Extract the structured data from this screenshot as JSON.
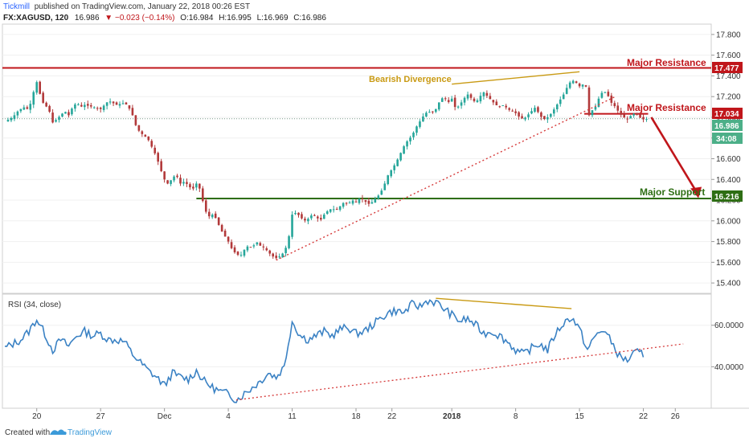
{
  "header": {
    "publisher": "Tickmill",
    "published_text": "published on TradingView.com, January 22, 2018 00:26 EST",
    "symbol": "FX:XAGUSD, 120",
    "last": "16.986",
    "change": "▼ −0.023 (−0.14%)",
    "open": "O:16.984",
    "high": "H:16.995",
    "low": "L:16.969",
    "close": "C:16.986"
  },
  "footer": {
    "created_with": "Created with",
    "brand": "TradingView"
  },
  "colors": {
    "bull": "#26a69a",
    "bear": "#b2393a",
    "resistance": "#c0161b",
    "support": "#2e6e14",
    "divergence": "#c99a13",
    "rsi_line": "#3b82c4",
    "trend_dotted": "#d63a3a"
  },
  "annotations": {
    "major_resistance_1": "Major Resistance",
    "major_resistance_2": "Major Resistance",
    "major_support": "Major Support",
    "bearish_divergence": "Bearish Divergence"
  },
  "price_tags": {
    "resistance_top": "17.477",
    "resistance_mid": "17.034",
    "last_price": "16.986",
    "countdown": "34:08",
    "support": "16.216"
  },
  "chart_data": [
    {
      "type": "candlestick",
      "series_name": "FX:XAGUSD, 120",
      "y_ticks": [
        "17.800",
        "17.600",
        "17.400",
        "17.200",
        "17.000",
        "16.800",
        "16.600",
        "16.400",
        "16.200",
        "16.000",
        "15.800",
        "15.600",
        "15.400"
      ],
      "ylim": [
        15.3,
        17.9
      ],
      "x_ticks": [
        "20",
        "27",
        "Dec",
        "4",
        "11",
        "18",
        "22",
        "2018",
        "8",
        "15",
        "22",
        "26"
      ],
      "levels": [
        {
          "name": "Major Resistance",
          "value": 17.477
        },
        {
          "name": "Major Resistance",
          "value": 17.034
        },
        {
          "name": "Major Support",
          "value": 16.216
        }
      ],
      "last_price": 16.986,
      "path": [
        [
          0,
          16.96
        ],
        [
          0.5,
          16.98
        ],
        [
          1,
          17.0
        ],
        [
          1.5,
          17.05
        ],
        [
          2,
          17.08
        ],
        [
          2.5,
          17.1
        ],
        [
          3,
          17.07
        ],
        [
          3.5,
          17.22
        ],
        [
          4,
          17.34
        ],
        [
          4.3,
          17.26
        ],
        [
          4.6,
          17.16
        ],
        [
          5,
          17.12
        ],
        [
          5.5,
          17.08
        ],
        [
          6,
          16.95
        ],
        [
          6.5,
          16.98
        ],
        [
          7,
          17.02
        ],
        [
          7.5,
          17.06
        ],
        [
          8,
          17.02
        ],
        [
          8.5,
          17.1
        ],
        [
          9,
          17.14
        ],
        [
          9.5,
          17.1
        ],
        [
          10,
          17.12
        ],
        [
          11,
          17.1
        ],
        [
          12,
          17.08
        ],
        [
          13,
          17.16
        ],
        [
          14,
          17.12
        ],
        [
          15,
          17.14
        ],
        [
          15.5,
          17.1
        ],
        [
          16,
          17.02
        ],
        [
          16.5,
          16.9
        ],
        [
          17,
          16.85
        ],
        [
          17.5,
          16.82
        ],
        [
          18,
          16.78
        ],
        [
          18.5,
          16.7
        ],
        [
          19,
          16.62
        ],
        [
          19.5,
          16.5
        ],
        [
          20,
          16.4
        ],
        [
          20.5,
          16.35
        ],
        [
          21,
          16.42
        ],
        [
          21.5,
          16.44
        ],
        [
          22,
          16.36
        ],
        [
          22.5,
          16.38
        ],
        [
          23,
          16.34
        ],
        [
          23.5,
          16.3
        ],
        [
          24,
          16.36
        ],
        [
          24.5,
          16.3
        ],
        [
          25,
          16.12
        ],
        [
          25.5,
          16.04
        ],
        [
          26,
          16.06
        ],
        [
          26.5,
          16.02
        ],
        [
          27,
          15.92
        ],
        [
          27.5,
          15.86
        ],
        [
          28,
          15.8
        ],
        [
          28.5,
          15.72
        ],
        [
          29,
          15.68
        ],
        [
          29.5,
          15.66
        ],
        [
          30,
          15.72
        ],
        [
          30.5,
          15.76
        ],
        [
          31,
          15.74
        ],
        [
          31.5,
          15.8
        ],
        [
          32,
          15.76
        ],
        [
          32.5,
          15.74
        ],
        [
          33,
          15.7
        ],
        [
          33.5,
          15.66
        ],
        [
          34,
          15.64
        ],
        [
          34.5,
          15.66
        ],
        [
          35,
          15.7
        ],
        [
          35.5,
          15.8
        ],
        [
          36,
          16.06
        ],
        [
          36.5,
          16.08
        ],
        [
          37,
          16.04
        ],
        [
          37.5,
          16.0
        ],
        [
          38,
          16.02
        ],
        [
          38.5,
          16.06
        ],
        [
          39,
          16.04
        ],
        [
          39.5,
          16.0
        ],
        [
          40,
          16.06
        ],
        [
          40.5,
          16.1
        ],
        [
          41,
          16.12
        ],
        [
          41.5,
          16.1
        ],
        [
          42,
          16.14
        ],
        [
          42.5,
          16.18
        ],
        [
          43,
          16.16
        ],
        [
          43.5,
          16.2
        ],
        [
          44,
          16.18
        ],
        [
          44.5,
          16.22
        ],
        [
          45,
          16.2
        ],
        [
          45.5,
          16.16
        ],
        [
          46,
          16.18
        ],
        [
          46.5,
          16.22
        ],
        [
          47,
          16.26
        ],
        [
          47.5,
          16.34
        ],
        [
          48,
          16.44
        ],
        [
          48.5,
          16.5
        ],
        [
          49,
          16.56
        ],
        [
          49.5,
          16.64
        ],
        [
          50,
          16.72
        ],
        [
          50.5,
          16.78
        ],
        [
          51,
          16.82
        ],
        [
          51.5,
          16.9
        ],
        [
          52,
          16.96
        ],
        [
          52.5,
          17.02
        ],
        [
          53,
          17.06
        ],
        [
          53.5,
          17.04
        ],
        [
          54,
          17.08
        ],
        [
          54.5,
          17.16
        ],
        [
          55,
          17.2
        ],
        [
          55.5,
          17.14
        ],
        [
          56,
          17.18
        ],
        [
          56.5,
          17.08
        ],
        [
          57,
          17.12
        ],
        [
          57.5,
          17.18
        ],
        [
          58,
          17.22
        ],
        [
          58.5,
          17.18
        ],
        [
          59,
          17.14
        ],
        [
          59.5,
          17.2
        ],
        [
          60,
          17.24
        ],
        [
          60.5,
          17.2
        ],
        [
          61,
          17.16
        ],
        [
          61.5,
          17.12
        ],
        [
          62,
          17.1
        ],
        [
          62.5,
          17.12
        ],
        [
          63,
          17.08
        ],
        [
          63.5,
          17.06
        ],
        [
          64,
          17.04
        ],
        [
          64.5,
          17.0
        ],
        [
          65,
          16.98
        ],
        [
          65.5,
          17.02
        ],
        [
          66,
          17.06
        ],
        [
          66.5,
          17.1
        ],
        [
          67,
          17.02
        ],
        [
          67.5,
          16.98
        ],
        [
          68,
          17.0
        ],
        [
          68.5,
          17.04
        ],
        [
          69,
          17.1
        ],
        [
          69.5,
          17.16
        ],
        [
          70,
          17.22
        ],
        [
          70.5,
          17.3
        ],
        [
          71,
          17.36
        ],
        [
          71.5,
          17.34
        ],
        [
          72,
          17.3
        ],
        [
          72.5,
          17.32
        ],
        [
          73,
          17.28
        ],
        [
          73.2,
          17.02
        ],
        [
          73.5,
          17.06
        ],
        [
          74,
          17.1
        ],
        [
          74.5,
          17.2
        ],
        [
          75,
          17.26
        ],
        [
          75.5,
          17.22
        ],
        [
          76,
          17.14
        ],
        [
          76.5,
          17.1
        ],
        [
          77,
          17.04
        ],
        [
          77.5,
          17.0
        ],
        [
          78,
          16.98
        ],
        [
          78.5,
          17.02
        ],
        [
          79,
          17.04
        ],
        [
          79.5,
          17.0
        ],
        [
          80,
          16.98
        ],
        [
          80.5,
          16.986
        ]
      ]
    },
    {
      "type": "line",
      "title": "RSI (34, close)",
      "y_ticks": [
        "60.0000",
        "40.0000"
      ],
      "ylim": [
        20,
        75
      ],
      "path": [
        [
          0,
          49
        ],
        [
          1,
          51
        ],
        [
          2,
          53
        ],
        [
          3,
          57
        ],
        [
          4,
          63
        ],
        [
          5,
          56
        ],
        [
          6,
          48
        ],
        [
          7,
          53
        ],
        [
          8,
          50
        ],
        [
          9,
          55
        ],
        [
          10,
          57
        ],
        [
          11,
          55
        ],
        [
          12,
          56
        ],
        [
          13,
          53
        ],
        [
          14,
          53
        ],
        [
          15,
          52
        ],
        [
          16,
          46
        ],
        [
          17,
          42
        ],
        [
          18,
          38
        ],
        [
          19,
          35
        ],
        [
          20,
          31
        ],
        [
          21,
          37
        ],
        [
          22,
          35
        ],
        [
          23,
          34
        ],
        [
          24,
          38
        ],
        [
          25,
          33
        ],
        [
          26,
          30
        ],
        [
          27,
          28
        ],
        [
          28,
          27
        ],
        [
          29,
          24
        ],
        [
          30,
          27
        ],
        [
          31,
          30
        ],
        [
          32,
          33
        ],
        [
          33,
          37
        ],
        [
          34,
          35
        ],
        [
          35,
          40
        ],
        [
          36,
          62
        ],
        [
          37,
          55
        ],
        [
          38,
          53
        ],
        [
          39,
          55
        ],
        [
          40,
          57
        ],
        [
          41,
          55
        ],
        [
          42,
          58
        ],
        [
          43,
          59
        ],
        [
          44,
          56
        ],
        [
          45,
          57
        ],
        [
          46,
          60
        ],
        [
          47,
          63
        ],
        [
          48,
          66
        ],
        [
          49,
          67
        ],
        [
          50,
          66
        ],
        [
          51,
          70
        ],
        [
          52,
          69
        ],
        [
          53,
          72
        ],
        [
          54,
          71
        ],
        [
          55,
          68
        ],
        [
          56,
          65
        ],
        [
          57,
          62
        ],
        [
          58,
          63
        ],
        [
          59,
          60
        ],
        [
          60,
          56
        ],
        [
          61,
          57
        ],
        [
          62,
          55
        ],
        [
          63,
          52
        ],
        [
          64,
          48
        ],
        [
          65,
          46
        ],
        [
          66,
          49
        ],
        [
          67,
          51
        ],
        [
          68,
          48
        ],
        [
          69,
          56
        ],
        [
          70,
          61
        ],
        [
          71,
          64
        ],
        [
          72,
          58
        ],
        [
          73,
          48
        ],
        [
          74,
          55
        ],
        [
          75,
          58
        ],
        [
          76,
          52
        ],
        [
          77,
          45
        ],
        [
          78,
          43
        ],
        [
          79,
          47
        ],
        [
          80,
          46
        ]
      ]
    }
  ]
}
